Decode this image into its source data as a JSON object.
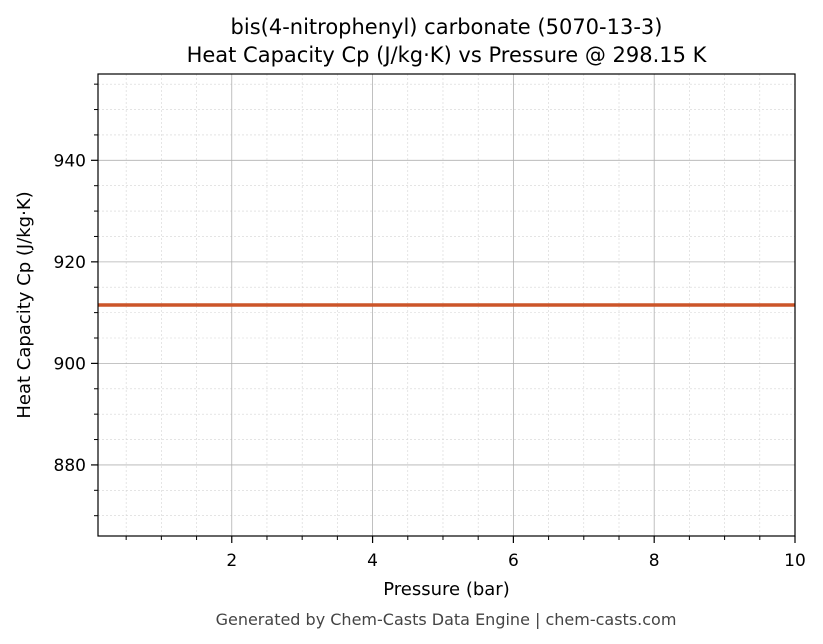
{
  "chart_data": {
    "type": "line",
    "title_line1": "bis(4-nitrophenyl) carbonate (5070-13-3)",
    "title_line2": "Heat Capacity Cp (J/kg·K) vs Pressure @ 298.15 K",
    "xlabel": "Pressure (bar)",
    "ylabel": "Heat Capacity Cp (J/kg·K)",
    "xlim": [
      0.1,
      10
    ],
    "ylim": [
      866,
      957
    ],
    "x_ticks": [
      2,
      4,
      6,
      8,
      10
    ],
    "x_tick_labels": [
      "2",
      "4",
      "6",
      "8",
      "10"
    ],
    "x_minor_step": 0.5,
    "y_ticks": [
      880,
      900,
      920,
      940
    ],
    "y_tick_labels": [
      "880",
      "900",
      "920",
      "940"
    ],
    "y_minor_step": 5,
    "grid": true,
    "series": [
      {
        "color": "#cc5529",
        "x": [
          0.1,
          10
        ],
        "y": [
          911.5,
          911.5
        ]
      }
    ]
  },
  "footer": "Generated by Chem-Casts Data Engine | chem-casts.com"
}
